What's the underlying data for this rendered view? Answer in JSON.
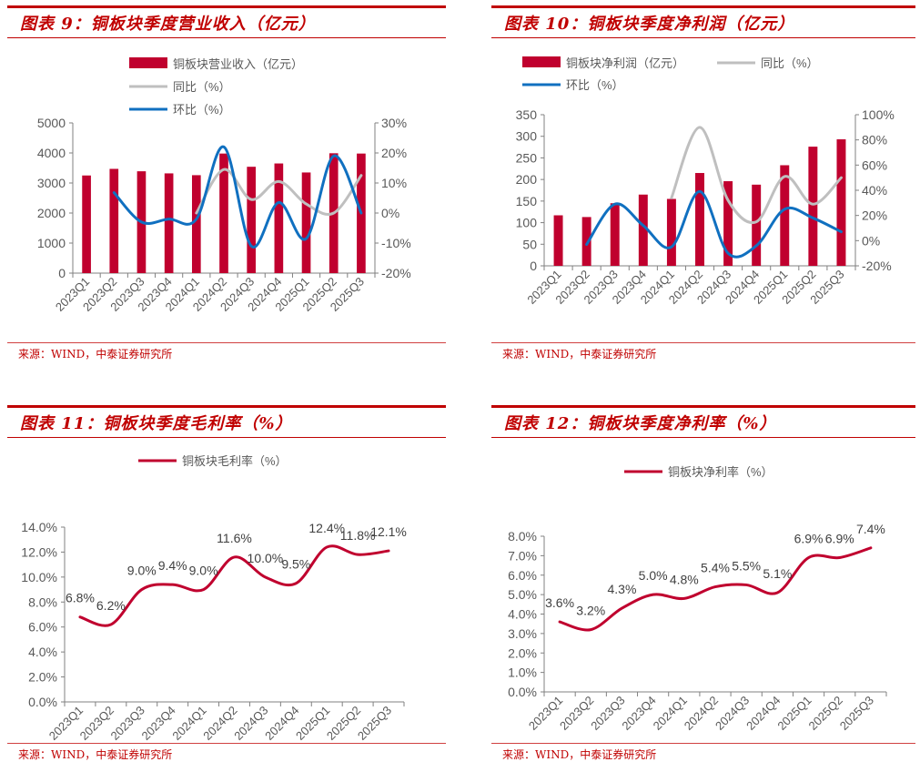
{
  "charts": {
    "c9": {
      "title": "图表 9：铜板块季度营业收入（亿元）",
      "source": "来源：WIND，中泰证券研究所",
      "legend": [
        "铜板块营业收入（亿元）",
        "同比（%）",
        "环比（%）"
      ]
    },
    "c10": {
      "title": "图表 10：铜板块季度净利润（亿元）",
      "source": "来源：WIND，中泰证券研究所",
      "legend": [
        "铜板块净利润（亿元）",
        "同比（%）",
        "环比（%）"
      ]
    },
    "c11": {
      "title": "图表 11：铜板块季度毛利率（%）",
      "source": "来源：WIND，中泰证券研究所",
      "legend": [
        "铜板块毛利率（%）"
      ]
    },
    "c12": {
      "title": "图表 12：铜板块季度净利率（%）",
      "source": "来源：WIND，中泰证券研究所",
      "legend": [
        "铜板块净利率（%）"
      ]
    }
  },
  "colors": {
    "bar": "#c0002e",
    "yoy": "#bfbfbf",
    "qoq": "#1070c0",
    "margin": "#c0002e",
    "title": "#c00000",
    "axis": "#808080",
    "tick_text": "#595959"
  },
  "chart_data": [
    {
      "type": "bar",
      "title": "图表 9：铜板块季度营业收入（亿元）",
      "categories": [
        "2023Q1",
        "2023Q2",
        "2023Q3",
        "2023Q4",
        "2024Q1",
        "2024Q2",
        "2024Q3",
        "2024Q4",
        "2025Q1",
        "2025Q2",
        "2025Q3"
      ],
      "ylim": [
        0,
        5000
      ],
      "yticks": [
        "0",
        "1000",
        "2000",
        "3000",
        "4000",
        "5000"
      ],
      "y2lim": [
        -20,
        30
      ],
      "y2ticks": [
        "-20%",
        "-10%",
        "0%",
        "10%",
        "20%",
        "30%"
      ],
      "legend_position": "top",
      "series": [
        {
          "name": "铜板块营业收入（亿元）",
          "kind": "bar",
          "axis": "left",
          "values": [
            3250,
            3470,
            3390,
            3320,
            3260,
            3980,
            3540,
            3650,
            3350,
            3990,
            3980
          ]
        },
        {
          "name": "同比（%）",
          "kind": "line",
          "axis": "right",
          "values": [
            null,
            null,
            null,
            null,
            0,
            14.5,
            4.5,
            10.5,
            3,
            0,
            12.5
          ]
        },
        {
          "name": "环比（%）",
          "kind": "line",
          "axis": "right",
          "values": [
            null,
            6.8,
            -3,
            -2,
            -2,
            22,
            -11,
            3.5,
            -8.5,
            19,
            0
          ]
        }
      ]
    },
    {
      "type": "bar",
      "title": "图表 10：铜板块季度净利润（亿元）",
      "categories": [
        "2023Q1",
        "2023Q2",
        "2023Q3",
        "2023Q4",
        "2024Q1",
        "2024Q2",
        "2024Q3",
        "2024Q4",
        "2025Q1",
        "2025Q2",
        "2025Q3"
      ],
      "ylim": [
        0,
        350
      ],
      "yticks": [
        "0",
        "50",
        "100",
        "150",
        "200",
        "250",
        "300",
        "350"
      ],
      "y2lim": [
        -20,
        100
      ],
      "y2ticks": [
        "-20%",
        "0%",
        "20%",
        "40%",
        "60%",
        "80%",
        "100%"
      ],
      "legend_position": "top",
      "series": [
        {
          "name": "铜板块净利润（亿元）",
          "kind": "bar",
          "axis": "left",
          "values": [
            117,
            113,
            145,
            165,
            155,
            215,
            196,
            188,
            233,
            276,
            293
          ]
        },
        {
          "name": "同比（%）",
          "kind": "line",
          "axis": "right",
          "values": [
            null,
            null,
            null,
            null,
            34,
            90,
            32,
            15,
            51,
            29,
            50
          ]
        },
        {
          "name": "环比（%）",
          "kind": "line",
          "axis": "right",
          "values": [
            null,
            -3,
            29,
            12,
            -5,
            39,
            -10,
            -4,
            25,
            18,
            7
          ]
        }
      ]
    },
    {
      "type": "line",
      "title": "图表 11：铜板块季度毛利率（%）",
      "categories": [
        "2023Q1",
        "2023Q2",
        "2023Q3",
        "2023Q4",
        "2024Q1",
        "2024Q2",
        "2024Q3",
        "2024Q4",
        "2025Q1",
        "2025Q2",
        "2025Q3"
      ],
      "ylim": [
        0,
        14
      ],
      "yticks": [
        "0.0%",
        "2.0%",
        "4.0%",
        "6.0%",
        "8.0%",
        "10.0%",
        "12.0%",
        "14.0%"
      ],
      "legend_position": "top",
      "series": [
        {
          "name": "铜板块毛利率（%）",
          "values": [
            6.8,
            6.2,
            9.0,
            9.4,
            9.0,
            11.6,
            10.0,
            9.5,
            12.4,
            11.8,
            12.1
          ],
          "labels": [
            "6.8%",
            "6.2%",
            "9.0%",
            "9.4%",
            "9.0%",
            "11.6%",
            "10.0%",
            "9.5%",
            "12.4%",
            "11.8%",
            "12.1%"
          ]
        }
      ]
    },
    {
      "type": "line",
      "title": "图表 12：铜板块季度净利率（%）",
      "categories": [
        "2023Q1",
        "2023Q2",
        "2023Q3",
        "2023Q4",
        "2024Q1",
        "2024Q2",
        "2024Q3",
        "2024Q4",
        "2025Q1",
        "2025Q2",
        "2025Q3"
      ],
      "ylim": [
        0,
        8
      ],
      "yticks": [
        "0.0%",
        "1.0%",
        "2.0%",
        "3.0%",
        "4.0%",
        "5.0%",
        "6.0%",
        "7.0%",
        "8.0%"
      ],
      "legend_position": "top",
      "series": [
        {
          "name": "铜板块净利率（%）",
          "values": [
            3.6,
            3.2,
            4.3,
            5.0,
            4.8,
            5.4,
            5.5,
            5.1,
            6.9,
            6.9,
            7.4
          ],
          "labels": [
            "3.6%",
            "3.2%",
            "4.3%",
            "5.0%",
            "4.8%",
            "5.4%",
            "5.5%",
            "5.1%",
            "6.9%",
            "6.9%",
            "7.4%"
          ]
        }
      ]
    }
  ]
}
